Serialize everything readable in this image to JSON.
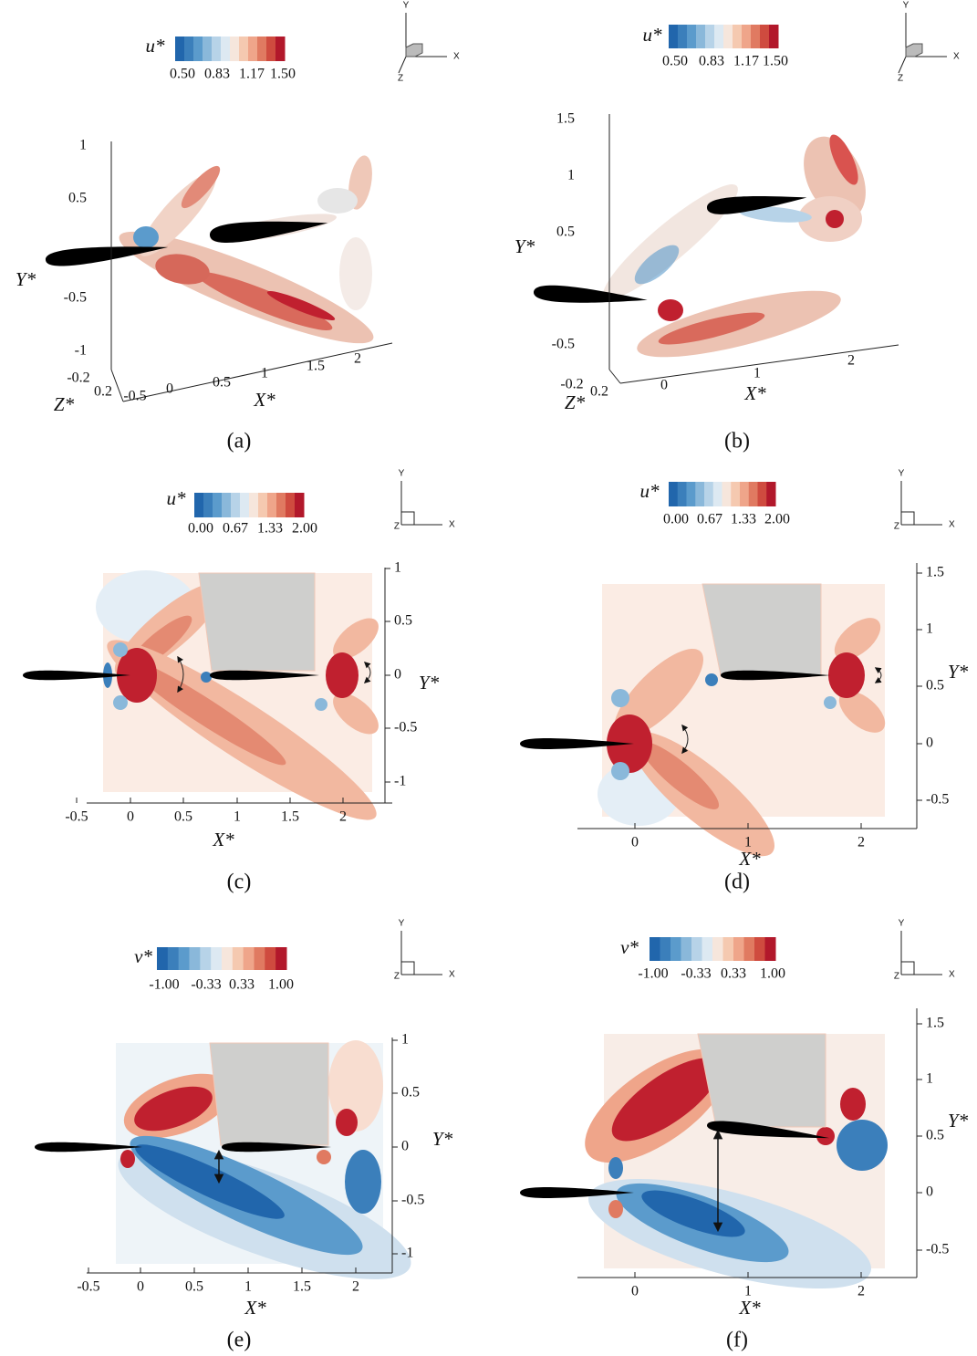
{
  "panels": [
    {
      "caption": "(a)",
      "colorbar": {
        "label": "u*",
        "ticks": [
          "0.50",
          "0.83",
          "1.17",
          "1.50"
        ]
      },
      "triad": [
        "Y",
        "X",
        "Z"
      ],
      "axes": {
        "x_label": "X*",
        "y_label": "Y*",
        "z_label": "Z*",
        "x_ticks": [
          "-0.5",
          "0",
          "0.5",
          "1",
          "1.5",
          "2"
        ],
        "y_ticks": [
          "1",
          "0.5",
          "-0.5",
          "-1"
        ],
        "z_ticks": [
          "-0.2",
          "0.2"
        ]
      }
    },
    {
      "caption": "(b)",
      "colorbar": {
        "label": "u*",
        "ticks": [
          "0.50",
          "0.83",
          "1.17",
          "1.50"
        ]
      },
      "triad": [
        "Y",
        "X",
        "Z"
      ],
      "axes": {
        "x_label": "X*",
        "y_label": "Y*",
        "z_label": "Z*",
        "x_ticks": [
          "0",
          "1",
          "2"
        ],
        "y_ticks": [
          "1.5",
          "1",
          "0.5",
          "-0.5"
        ],
        "z_ticks": [
          "-0.2",
          "0.2"
        ]
      }
    },
    {
      "caption": "(c)",
      "colorbar": {
        "label": "u*",
        "ticks": [
          "0.00",
          "0.67",
          "1.33",
          "2.00"
        ]
      },
      "triad": [
        "Y",
        "X",
        "Z"
      ],
      "axes": {
        "x_label": "X*",
        "y_label": "Y*",
        "x_ticks": [
          "-0.5",
          "0",
          "0.5",
          "1",
          "1.5",
          "2"
        ],
        "y_ticks": [
          "1",
          "0.5",
          "0",
          "-0.5",
          "-1"
        ]
      }
    },
    {
      "caption": "(d)",
      "colorbar": {
        "label": "u*",
        "ticks": [
          "0.00",
          "0.67",
          "1.33",
          "2.00"
        ]
      },
      "triad": [
        "Y",
        "X",
        "Z"
      ],
      "axes": {
        "x_label": "X*",
        "y_label": "Y*",
        "x_ticks": [
          "0",
          "1",
          "2"
        ],
        "y_ticks": [
          "1.5",
          "1",
          "0.5",
          "0",
          "-0.5"
        ]
      }
    },
    {
      "caption": "(e)",
      "colorbar": {
        "label": "v*",
        "ticks": [
          "-1.00",
          "-0.33",
          "0.33",
          "1.00"
        ]
      },
      "triad": [
        "Y",
        "X",
        "Z"
      ],
      "axes": {
        "x_label": "X*",
        "y_label": "Y*",
        "x_ticks": [
          "-0.5",
          "0",
          "0.5",
          "1",
          "1.5",
          "2"
        ],
        "y_ticks": [
          "1",
          "0.5",
          "0",
          "-0.5",
          "-1"
        ]
      }
    },
    {
      "caption": "(f)",
      "colorbar": {
        "label": "v*",
        "ticks": [
          "-1.00",
          "-0.33",
          "0.33",
          "1.00"
        ]
      },
      "triad": [
        "Y",
        "X",
        "Z"
      ],
      "axes": {
        "x_label": "X*",
        "y_label": "Y*",
        "x_ticks": [
          "0",
          "1",
          "2"
        ],
        "y_ticks": [
          "1.5",
          "1",
          "0.5",
          "0",
          "-0.5"
        ]
      }
    }
  ]
}
